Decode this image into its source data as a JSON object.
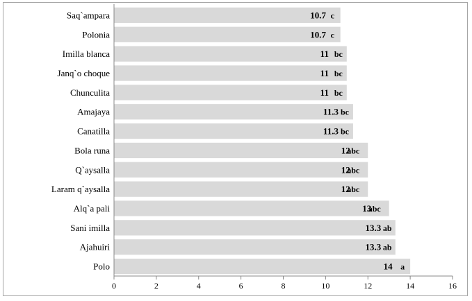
{
  "chart_data": {
    "type": "bar",
    "orientation": "horizontal",
    "categories": [
      "Saq`ampara",
      "Polonia",
      "Imilla blanca",
      "Janq`o choque",
      "Chunculita",
      "Amajaya",
      "Canatilla",
      "Bola runa",
      "Q`aysalla",
      "Laram q`aysalla",
      "Alq`a pali",
      "Sani imilla",
      "Ajahuiri",
      "Polo"
    ],
    "values": [
      10.7,
      10.7,
      11,
      11,
      11,
      11.3,
      11.3,
      12,
      12,
      12,
      13,
      13.3,
      13.3,
      14
    ],
    "value_labels": [
      "10.7",
      "10.7",
      "11",
      "11",
      "11",
      "11.3",
      "11.3",
      "12",
      "12",
      "12",
      "13",
      "13.3",
      "13.3",
      "14"
    ],
    "significance": [
      "c",
      "c",
      "bc",
      "bc",
      "bc",
      "bc",
      "bc",
      "abc",
      "abc",
      "abc",
      "abc",
      "ab",
      "ab",
      "a"
    ],
    "title": "",
    "xlabel": "",
    "ylabel": "",
    "xlim": [
      0,
      16
    ],
    "xticks": [
      0,
      2,
      4,
      6,
      8,
      10,
      12,
      14,
      16
    ],
    "grid": false,
    "legend": "none",
    "bar_color": "#d9d9d9"
  }
}
